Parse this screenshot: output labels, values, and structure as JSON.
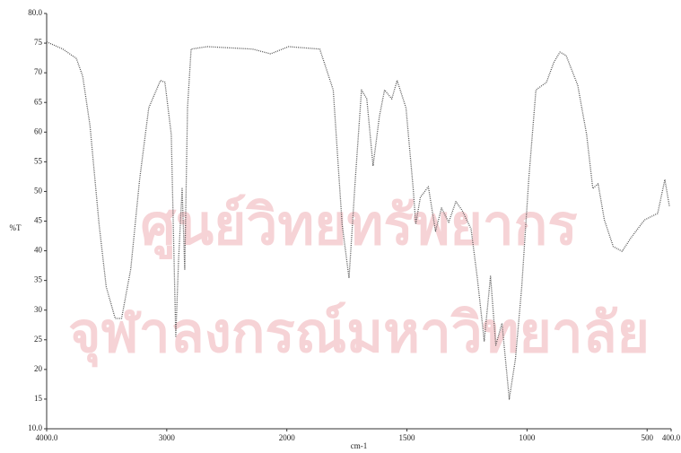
{
  "chart_data": {
    "type": "line",
    "watermark": [
      "ศูนย์วิทยทรัพยากร",
      "จุฬาลงกรณ์มหาวิทยาลัย"
    ],
    "xlabel": "cm-1",
    "ylabel": "%T",
    "xlim": [
      4000,
      400
    ],
    "ylim": [
      10,
      80
    ],
    "x_scale_break": 2000,
    "xticks": [
      {
        "value": 4000,
        "label": "4000.0"
      },
      3000,
      2000,
      1500,
      1000,
      500,
      {
        "value": 400,
        "label": "400.0"
      }
    ],
    "yticks": [
      {
        "value": 80,
        "label": "80.0"
      },
      75,
      70,
      65,
      60,
      55,
      50,
      45,
      40,
      35,
      30,
      25,
      20,
      15,
      {
        "value": 10,
        "label": "10.0"
      }
    ],
    "series": [
      {
        "color": "#555555",
        "x": [
          4000,
          3865,
          3752,
          3700,
          3639,
          3564,
          3504,
          3429,
          3376,
          3300,
          3226,
          3150,
          3053,
          3015,
          2962,
          2925,
          2902,
          2872,
          2850,
          2827,
          2797,
          2662,
          2286,
          2135,
          1993,
          1863,
          1807,
          1770,
          1741,
          1715,
          1689,
          1667,
          1641,
          1615,
          1593,
          1563,
          1541,
          1504,
          1474,
          1463,
          1444,
          1411,
          1381,
          1356,
          1326,
          1296,
          1270,
          1233,
          1207,
          1178,
          1152,
          1130,
          1104,
          1074,
          1048,
          1022,
          993,
          963,
          919,
          889,
          863,
          837,
          789,
          752,
          726,
          704,
          678,
          641,
          604,
          567,
          511,
          456,
          426,
          407
        ],
        "values": [
          75.2,
          74.0,
          72.4,
          69.4,
          61.1,
          44.5,
          33.9,
          28.6,
          28.6,
          36.9,
          52.0,
          64.1,
          68.7,
          68.4,
          59.6,
          25.6,
          38.4,
          50.5,
          36.9,
          64.1,
          74.0,
          74.4,
          74.0,
          73.2,
          74.4,
          74.0,
          67.1,
          44.5,
          35.4,
          52.0,
          67.1,
          65.6,
          54.3,
          62.6,
          67.1,
          65.6,
          68.7,
          64.1,
          50.5,
          44.5,
          49.0,
          50.8,
          43.3,
          47.2,
          44.8,
          48.3,
          46.8,
          43.7,
          35.4,
          24.8,
          35.7,
          24.1,
          27.8,
          15.0,
          21.8,
          33.9,
          52.0,
          67.1,
          68.4,
          71.7,
          73.5,
          72.9,
          67.9,
          59.6,
          50.5,
          51.3,
          45.2,
          40.7,
          39.9,
          42.2,
          45.2,
          46.3,
          52.0,
          47.5
        ]
      }
    ]
  }
}
